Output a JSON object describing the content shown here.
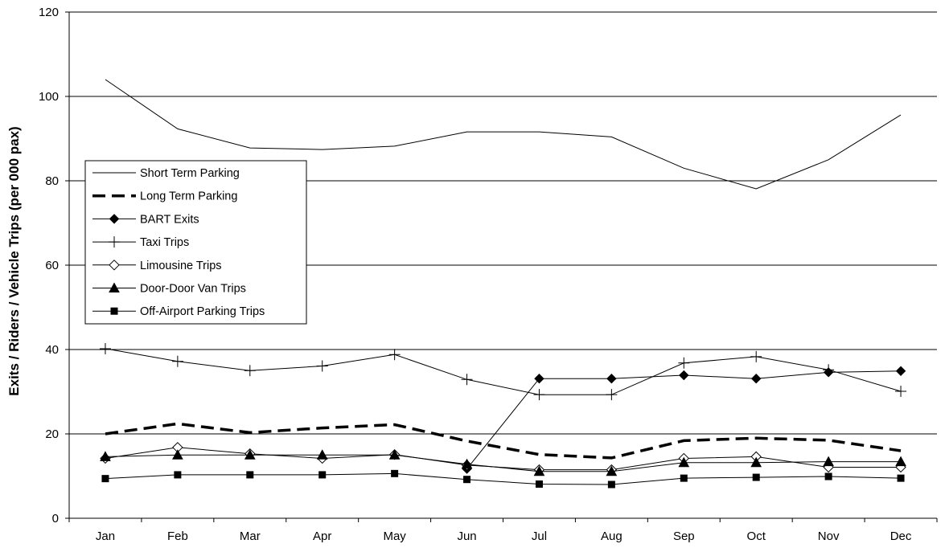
{
  "chart_data": {
    "type": "line",
    "title": "",
    "xlabel": "",
    "ylabel": "Exits / Riders / Vehicle Trips (per 000 pax)",
    "ylim": [
      0,
      120
    ],
    "yticks": [
      0,
      20,
      40,
      60,
      80,
      100,
      120
    ],
    "grid": "horizontal",
    "legend_position": "center-left",
    "categories": [
      "Jan",
      "Feb",
      "Mar",
      "Apr",
      "May",
      "Jun",
      "Jul",
      "Aug",
      "Sep",
      "Oct",
      "Nov",
      "Dec"
    ],
    "series": [
      {
        "name": "Short Term Parking",
        "marker": "none",
        "style": "solid-thin",
        "color": "#000000",
        "values": [
          104,
          92.3,
          87.8,
          87.4,
          88.2,
          91.6,
          91.6,
          90.4,
          83,
          78.1,
          85,
          95.6
        ]
      },
      {
        "name": "Long Term Parking",
        "marker": "none",
        "style": "dashed-thick",
        "color": "#000000",
        "values": [
          20,
          22.4,
          20.3,
          21.4,
          22.2,
          18.3,
          15.1,
          14.3,
          18.4,
          19,
          18.5,
          16
        ]
      },
      {
        "name": "BART Exits",
        "marker": "diamond",
        "style": "solid-thin",
        "color": "#000000",
        "values": [
          null,
          null,
          null,
          null,
          null,
          11.7,
          33.1,
          33.1,
          33.9,
          33.1,
          34.6,
          34.9
        ]
      },
      {
        "name": "Taxi Trips",
        "marker": "plus",
        "style": "solid-thin",
        "color": "#000000",
        "values": [
          40.2,
          37.2,
          35,
          36.1,
          38.8,
          32.9,
          29.3,
          29.3,
          36.8,
          38.3,
          35.2,
          30.1
        ]
      },
      {
        "name": "Limousine Trips",
        "marker": "diamond-open",
        "style": "solid-thin",
        "color": "#000000",
        "values": [
          14.2,
          16.8,
          15.3,
          14.2,
          15.1,
          12.6,
          11.5,
          11.5,
          14.2,
          14.6,
          12.1,
          12.1
        ]
      },
      {
        "name": "Door-Door Van Trips",
        "marker": "triangle",
        "style": "solid-thin",
        "color": "#000000",
        "values": [
          14.6,
          15,
          15,
          15,
          15,
          12.8,
          11.1,
          11.1,
          13.2,
          13.2,
          13.4,
          13.4
        ]
      },
      {
        "name": "Off-Airport Parking Trips",
        "marker": "square",
        "style": "solid-thin",
        "color": "#000000",
        "values": [
          9.4,
          10.3,
          10.3,
          10.3,
          10.6,
          9.2,
          8.1,
          8,
          9.5,
          9.7,
          9.9,
          9.5
        ]
      }
    ]
  }
}
